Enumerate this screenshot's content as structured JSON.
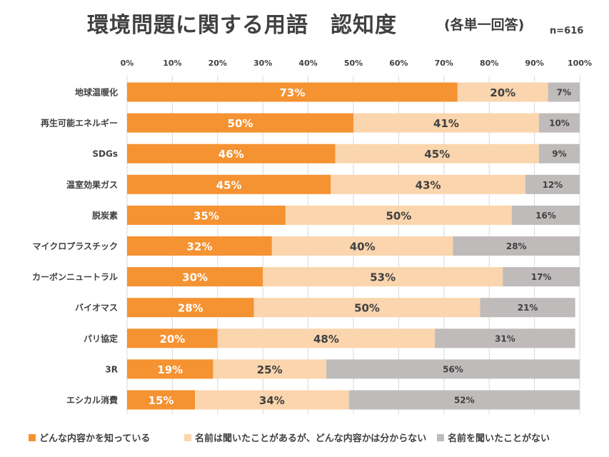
{
  "chart_data": {
    "type": "bar",
    "orientation": "horizontal",
    "stacked": "percent",
    "title": "環境問題に関する用語　認知度",
    "subtitle": "(各単一回答)",
    "sample_size": "n=616",
    "x_ticks": [
      "0%",
      "10%",
      "20%",
      "30%",
      "40%",
      "50%",
      "60%",
      "70%",
      "80%",
      "90%",
      "100%"
    ],
    "xlim": [
      0,
      100
    ],
    "grid": true,
    "legend_position": "bottom",
    "categories": [
      "地球温暖化",
      "再生可能エネルギー",
      "SDGs",
      "温室効果ガス",
      "脱炭素",
      "マイクロプラスチック",
      "カーボンニュートラル",
      "バイオマス",
      "パリ協定",
      "3R",
      "エシカル消費"
    ],
    "series": [
      {
        "name": "どんな内容かを知っている",
        "color": "#f59231",
        "label_color": "#ffffff",
        "values": [
          73,
          50,
          46,
          45,
          35,
          32,
          30,
          28,
          20,
          19,
          15
        ]
      },
      {
        "name": "名前は聞いたことがあるが、どんな内容かは分からない",
        "color": "#fad5ad",
        "label_color": "#404040",
        "values": [
          20,
          41,
          45,
          43,
          50,
          40,
          53,
          50,
          48,
          25,
          34
        ]
      },
      {
        "name": "名前を聞いたことがない",
        "color": "#bfbbbb",
        "label_color": "#404040",
        "values": [
          7,
          10,
          9,
          12,
          16,
          28,
          17,
          21,
          31,
          56,
          52
        ]
      }
    ]
  }
}
